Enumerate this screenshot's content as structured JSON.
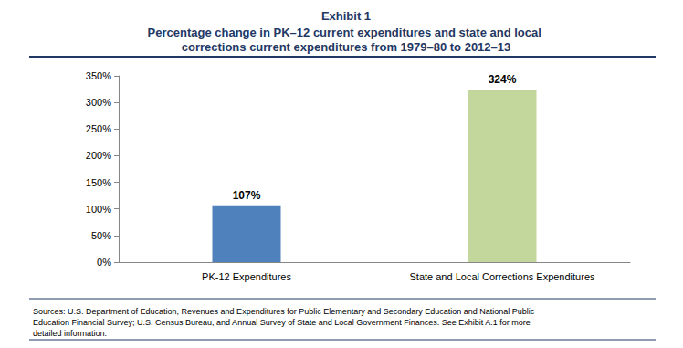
{
  "chart_data": {
    "type": "bar",
    "title": "Exhibit 1",
    "subtitle": "Percentage change in PK–12 current expenditures and state and local corrections current expenditures from 1979–80 to 2012–13",
    "categories": [
      "PK-12 Expenditures",
      "State and Local Corrections Expenditures"
    ],
    "values": [
      107,
      324
    ],
    "value_labels": [
      "107%",
      "324%"
    ],
    "colors": [
      "#4f81bd",
      "#c3d69b"
    ],
    "ylim": [
      0,
      350
    ],
    "yticks": [
      {
        "value": 0,
        "label": "0%"
      },
      {
        "value": 50,
        "label": "50%"
      },
      {
        "value": 100,
        "label": "100%"
      },
      {
        "value": 150,
        "label": "150%"
      },
      {
        "value": 200,
        "label": "200%"
      },
      {
        "value": 250,
        "label": "250%"
      },
      {
        "value": 300,
        "label": "300%"
      },
      {
        "value": 350,
        "label": "350%"
      }
    ],
    "grid": false,
    "data_labels": true,
    "annotations": [
      "Sources: U.S. Department of Education, Revenues and Expenditures for Public Elementary and Secondary Education and National Public Education Financial Survey; U.S. Census Bureau, and Annual Survey of State and Local Government Finances. See Exhibit A.1 for more detailed information."
    ]
  }
}
